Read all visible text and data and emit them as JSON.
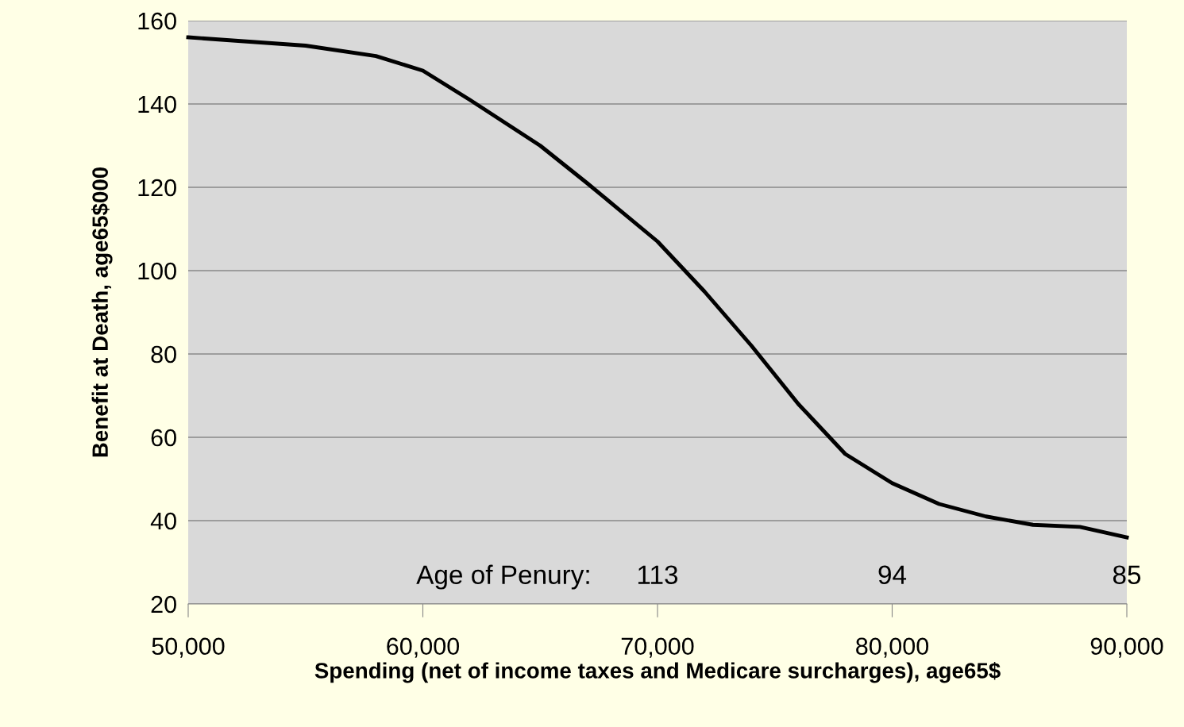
{
  "chart_data": {
    "type": "line",
    "xlabel": "Spending (net of income taxes and Medicare surcharges), age65$",
    "ylabel": "Benefit at Death, age65$000",
    "x": [
      50000,
      55000,
      58000,
      60000,
      62000,
      65000,
      67000,
      70000,
      72000,
      74000,
      76000,
      78000,
      80000,
      82000,
      84000,
      86000,
      88000,
      90000
    ],
    "series": [
      {
        "color": "#000000",
        "values": [
          156,
          154,
          151.5,
          148,
          141,
          130,
          121,
          107,
          95,
          82,
          68,
          56,
          49,
          44,
          41,
          39,
          38.5,
          36
        ]
      }
    ],
    "xlim": [
      50000,
      90000
    ],
    "xticks": [
      {
        "value": 50000,
        "label": "50,000"
      },
      {
        "value": 60000,
        "label": "60,000"
      },
      {
        "value": 70000,
        "label": "70,000"
      },
      {
        "value": 80000,
        "label": "80,000"
      },
      {
        "value": 90000,
        "label": "90,000"
      }
    ],
    "ylim": [
      20,
      160
    ],
    "yticks": [
      20,
      40,
      60,
      80,
      100,
      120,
      140,
      160
    ],
    "grid": "y",
    "marker": "none",
    "line_style": "solid",
    "annotations": [
      "Age of Penury:",
      "113",
      "94",
      "85"
    ]
  }
}
